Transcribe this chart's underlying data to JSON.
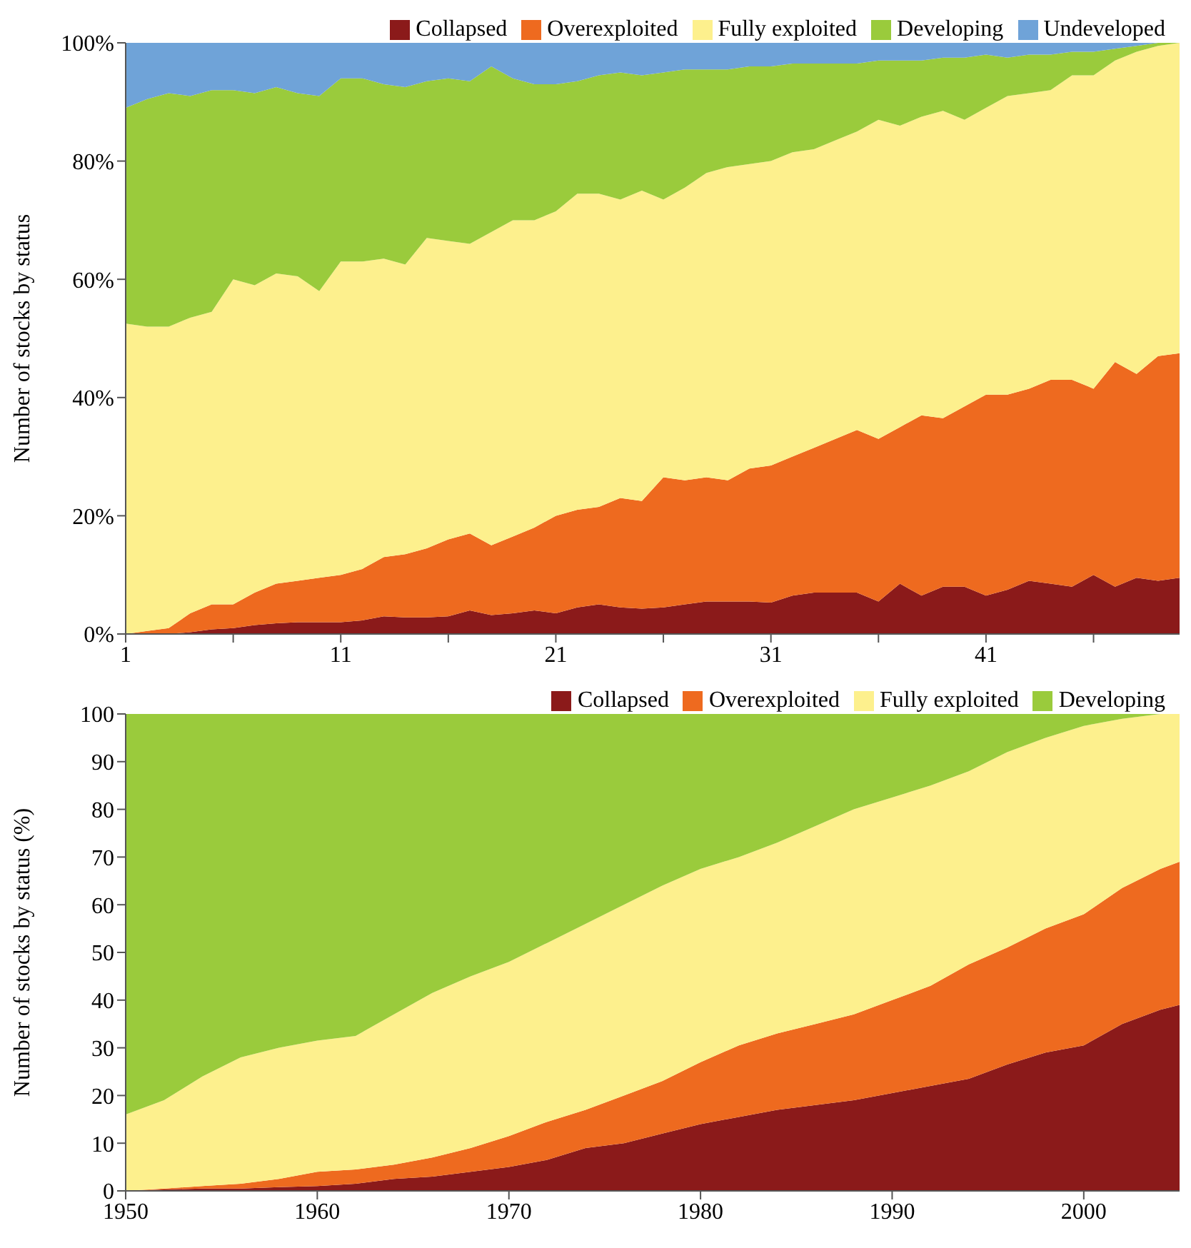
{
  "chart_data": [
    {
      "type": "area",
      "stacked": true,
      "ylabel": "Number of stocks by status",
      "legend": "top right",
      "xlim": [
        1,
        50
      ],
      "ylim": [
        0,
        100
      ],
      "xticks": [
        1,
        {
          "value": 6,
          "label": null
        },
        11,
        {
          "value": 16,
          "label": null
        },
        21,
        {
          "value": 26,
          "label": null
        },
        31,
        {
          "value": 36,
          "label": null
        },
        41,
        {
          "value": 46,
          "label": null
        }
      ],
      "yticks": [
        {
          "value": 0,
          "label": "0%"
        },
        {
          "value": 20,
          "label": "20%"
        },
        {
          "value": 40,
          "label": "40%"
        },
        {
          "value": 60,
          "label": "60%"
        },
        {
          "value": 80,
          "label": "80%"
        },
        {
          "value": 100,
          "label": "100%"
        }
      ],
      "x": [
        1,
        2,
        3,
        4,
        5,
        6,
        7,
        8,
        9,
        10,
        11,
        12,
        13,
        14,
        15,
        16,
        17,
        18,
        19,
        20,
        21,
        22,
        23,
        24,
        25,
        26,
        27,
        28,
        29,
        30,
        31,
        32,
        33,
        34,
        35,
        36,
        37,
        38,
        39,
        40,
        41,
        42,
        43,
        44,
        45,
        46,
        47,
        48,
        49,
        50
      ],
      "series": [
        {
          "name": "Collapsed",
          "color": "#8b1a1a",
          "values": [
            0,
            0,
            0,
            0.3,
            0.8,
            1,
            1.5,
            1.8,
            2,
            2,
            2,
            2.3,
            3,
            2.8,
            2.8,
            3,
            4,
            3.2,
            3.5,
            4,
            3.5,
            4.5,
            5,
            4.5,
            4.3,
            4.5,
            5,
            5.5,
            5.5,
            5.5,
            5.3,
            6.5,
            7,
            7,
            7,
            5.5,
            8.5,
            6.5,
            8,
            8,
            6.5,
            7.5,
            9,
            8.5,
            8,
            10,
            8,
            9.5,
            9,
            9.5
          ]
        },
        {
          "name": "Overexploited",
          "color": "#ee6a1f",
          "values": [
            0,
            0.5,
            1,
            3.2,
            4.2,
            4,
            5.5,
            6.7,
            7,
            7.5,
            8,
            8.7,
            10,
            10.7,
            11.7,
            13,
            13,
            11.8,
            13,
            14,
            16.5,
            16.5,
            16.5,
            18.5,
            18.2,
            22,
            21,
            21,
            20.5,
            22.5,
            23.2,
            23.5,
            24.5,
            26,
            27.5,
            27.5,
            26.5,
            30.5,
            28.5,
            30.5,
            34,
            33,
            32.5,
            34.5,
            35,
            31.5,
            38,
            34.5,
            38,
            38
          ]
        },
        {
          "name": "Fully exploited",
          "color": "#fdf08d",
          "values": [
            52.5,
            51.5,
            51,
            50,
            49.5,
            55,
            52,
            52.5,
            51.5,
            48.5,
            53,
            52,
            50.5,
            49,
            52.5,
            50.5,
            49,
            53,
            53.5,
            52,
            51.5,
            53.5,
            53,
            50.5,
            52.5,
            47,
            49.5,
            51.5,
            53,
            51.5,
            51.5,
            51.5,
            50.5,
            50.5,
            50.5,
            54,
            51,
            50.5,
            52,
            48.5,
            48.5,
            50.5,
            50,
            49,
            51.5,
            53,
            51,
            54.5,
            52.5,
            52.5
          ]
        },
        {
          "name": "Developing",
          "color": "#9acb3c",
          "values": [
            36.5,
            38.5,
            39.5,
            37.5,
            37.5,
            32,
            32.5,
            31.5,
            31,
            33,
            31,
            31,
            29.5,
            30,
            26.5,
            27.5,
            27.5,
            28,
            24,
            23,
            21.5,
            19,
            20,
            21.5,
            19.5,
            21.5,
            20,
            17.5,
            16.5,
            16.5,
            16,
            15,
            14.5,
            13,
            11.5,
            10,
            11,
            9.5,
            9,
            10.5,
            9,
            6.5,
            6.5,
            6,
            4,
            4,
            2,
            1,
            0.5,
            0
          ]
        },
        {
          "name": "Undeveloped",
          "color": "#6fa3d8",
          "values": [
            11,
            9.5,
            8.5,
            9,
            8,
            8,
            8.5,
            7.5,
            8.5,
            9,
            6,
            6,
            7,
            7.5,
            6.5,
            6,
            6.5,
            4,
            6,
            7,
            7,
            6.5,
            5.5,
            5,
            5.5,
            5,
            4.5,
            4.5,
            4.5,
            4,
            4,
            3.5,
            3.5,
            3.5,
            3.5,
            3,
            3,
            3,
            2.5,
            2.5,
            2,
            2.5,
            2,
            2,
            1.5,
            1.5,
            1,
            0.5,
            0,
            0
          ]
        }
      ]
    },
    {
      "type": "area",
      "stacked": true,
      "ylabel": "Number of stocks by status (%)",
      "legend": "top right",
      "xlim": [
        1950,
        2005
      ],
      "ylim": [
        0,
        100
      ],
      "xticks": [
        1950,
        1960,
        1970,
        1980,
        1990,
        2000
      ],
      "yticks": [
        0,
        10,
        20,
        30,
        40,
        50,
        60,
        70,
        80,
        90,
        100
      ],
      "x": [
        1950,
        1952,
        1954,
        1956,
        1958,
        1960,
        1962,
        1964,
        1966,
        1968,
        1970,
        1972,
        1974,
        1976,
        1978,
        1980,
        1982,
        1984,
        1986,
        1988,
        1990,
        1992,
        1994,
        1996,
        1998,
        2000,
        2002,
        2004,
        2005
      ],
      "series": [
        {
          "name": "Collapsed",
          "color": "#8b1a1a",
          "values": [
            0,
            0.3,
            0.5,
            0.5,
            0.8,
            1,
            1.5,
            2.5,
            3,
            4,
            5,
            6.5,
            9,
            10,
            12,
            14,
            15.5,
            17,
            18,
            19,
            20.5,
            22,
            23.5,
            26.5,
            29,
            30.5,
            35,
            38,
            39
          ]
        },
        {
          "name": "Overexploited",
          "color": "#ee6a1f",
          "values": [
            0,
            0.2,
            0.5,
            1,
            1.7,
            3,
            3,
            3,
            4,
            5,
            6.5,
            8,
            8,
            10,
            11,
            13,
            15,
            16,
            17,
            18,
            19.5,
            21,
            24,
            24.5,
            26,
            27.5,
            28.5,
            29.5,
            30
          ]
        },
        {
          "name": "Fully exploited",
          "color": "#fdf08d",
          "values": [
            16,
            18.5,
            23,
            26.5,
            27.5,
            27.5,
            28,
            31.5,
            34.5,
            36,
            36.5,
            37.5,
            39,
            40,
            41,
            40.5,
            39.5,
            40,
            41.5,
            43,
            42.5,
            42,
            40.5,
            41,
            40,
            39.5,
            35.5,
            32.5,
            31
          ]
        },
        {
          "name": "Developing",
          "color": "#9acb3c",
          "values": [
            84,
            81,
            76,
            72,
            70,
            68.5,
            67.5,
            63,
            58.5,
            55,
            52,
            48,
            44,
            40,
            36,
            32.5,
            30,
            27,
            23.5,
            20,
            17.5,
            15,
            12,
            8,
            5,
            2.5,
            1,
            0,
            0
          ]
        }
      ]
    }
  ]
}
